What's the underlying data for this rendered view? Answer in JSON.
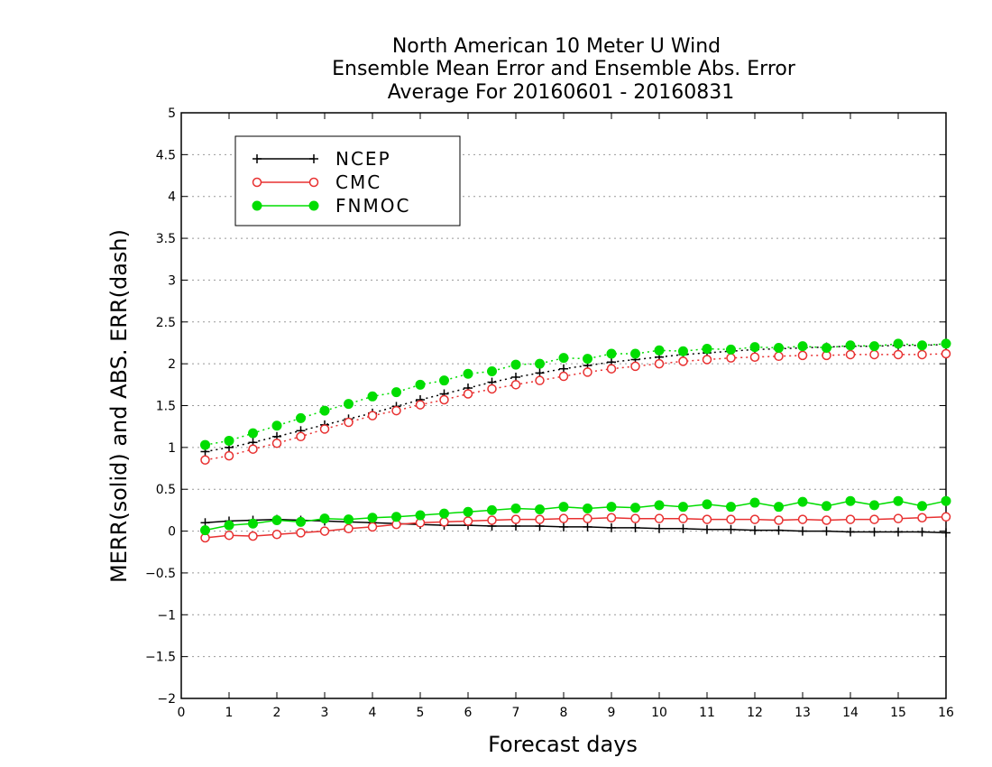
{
  "chart_data": {
    "type": "line",
    "title_lines": [
      "North American 10 Meter U Wind",
      "Ensemble Mean Error and Ensemble Abs. Error",
      "Average For 20160601 - 20160831"
    ],
    "xlabel": "Forecast days",
    "ylabel": "MERR(solid) and ABS. ERR(dash)",
    "xlim": [
      0,
      16
    ],
    "ylim": [
      -2,
      5
    ],
    "xticks": [
      "0",
      "1",
      "2",
      "3",
      "4",
      "5",
      "6",
      "7",
      "8",
      "9",
      "10",
      "11",
      "12",
      "13",
      "14",
      "15",
      "16"
    ],
    "yticks": [
      "-2",
      "-1.5",
      "-1",
      "-0.5",
      "0",
      "0.5",
      "1",
      "1.5",
      "2",
      "2.5",
      "3",
      "3.5",
      "4",
      "4.5",
      "5"
    ],
    "grid": "horizontal dotted",
    "legend_position": "top-left",
    "x": [
      0.5,
      1,
      1.5,
      2,
      2.5,
      3,
      3.5,
      4,
      4.5,
      5,
      5.5,
      6,
      6.5,
      7,
      7.5,
      8,
      8.5,
      9,
      9.5,
      10,
      10.5,
      11,
      11.5,
      12,
      12.5,
      13,
      13.5,
      14,
      14.5,
      15,
      15.5,
      16
    ],
    "series": [
      {
        "name": "NCEP",
        "color": "#000000",
        "marker": "plus",
        "merr": [
          0.1,
          0.12,
          0.13,
          0.14,
          0.13,
          0.12,
          0.11,
          0.1,
          0.09,
          0.08,
          0.07,
          0.07,
          0.06,
          0.06,
          0.06,
          0.05,
          0.05,
          0.04,
          0.04,
          0.03,
          0.03,
          0.02,
          0.02,
          0.01,
          0.01,
          0.0,
          0.0,
          -0.01,
          -0.01,
          -0.01,
          -0.01,
          -0.02
        ],
        "abs_err": [
          0.95,
          1.0,
          1.06,
          1.13,
          1.2,
          1.27,
          1.34,
          1.41,
          1.49,
          1.57,
          1.64,
          1.71,
          1.78,
          1.84,
          1.89,
          1.94,
          1.98,
          2.02,
          2.05,
          2.08,
          2.11,
          2.13,
          2.15,
          2.17,
          2.18,
          2.19,
          2.2,
          2.21,
          2.21,
          2.22,
          2.22,
          2.23
        ]
      },
      {
        "name": "CMC",
        "color": "#e83030",
        "marker": "open-circle",
        "merr": [
          -0.08,
          -0.05,
          -0.06,
          -0.04,
          -0.02,
          0.0,
          0.03,
          0.05,
          0.08,
          0.1,
          0.11,
          0.12,
          0.13,
          0.14,
          0.14,
          0.15,
          0.15,
          0.16,
          0.15,
          0.15,
          0.15,
          0.14,
          0.14,
          0.14,
          0.13,
          0.14,
          0.13,
          0.14,
          0.14,
          0.15,
          0.16,
          0.17
        ],
        "abs_err": [
          0.85,
          0.9,
          0.98,
          1.05,
          1.13,
          1.22,
          1.3,
          1.38,
          1.44,
          1.51,
          1.57,
          1.64,
          1.7,
          1.75,
          1.8,
          1.85,
          1.9,
          1.94,
          1.97,
          2.0,
          2.03,
          2.05,
          2.07,
          2.08,
          2.09,
          2.1,
          2.1,
          2.11,
          2.11,
          2.11,
          2.11,
          2.12
        ]
      },
      {
        "name": "FNMOC",
        "color": "#00dd00",
        "marker": "filled-circle",
        "merr": [
          0.01,
          0.07,
          0.09,
          0.13,
          0.11,
          0.15,
          0.14,
          0.16,
          0.17,
          0.19,
          0.21,
          0.23,
          0.25,
          0.27,
          0.26,
          0.29,
          0.27,
          0.29,
          0.28,
          0.31,
          0.29,
          0.32,
          0.29,
          0.34,
          0.29,
          0.35,
          0.3,
          0.36,
          0.31,
          0.36,
          0.3,
          0.36
        ],
        "abs_err": [
          1.03,
          1.08,
          1.17,
          1.26,
          1.35,
          1.44,
          1.52,
          1.61,
          1.66,
          1.75,
          1.8,
          1.88,
          1.91,
          1.99,
          2.0,
          2.07,
          2.06,
          2.12,
          2.12,
          2.16,
          2.15,
          2.18,
          2.17,
          2.2,
          2.19,
          2.21,
          2.19,
          2.22,
          2.21,
          2.24,
          2.22,
          2.24
        ]
      }
    ]
  }
}
